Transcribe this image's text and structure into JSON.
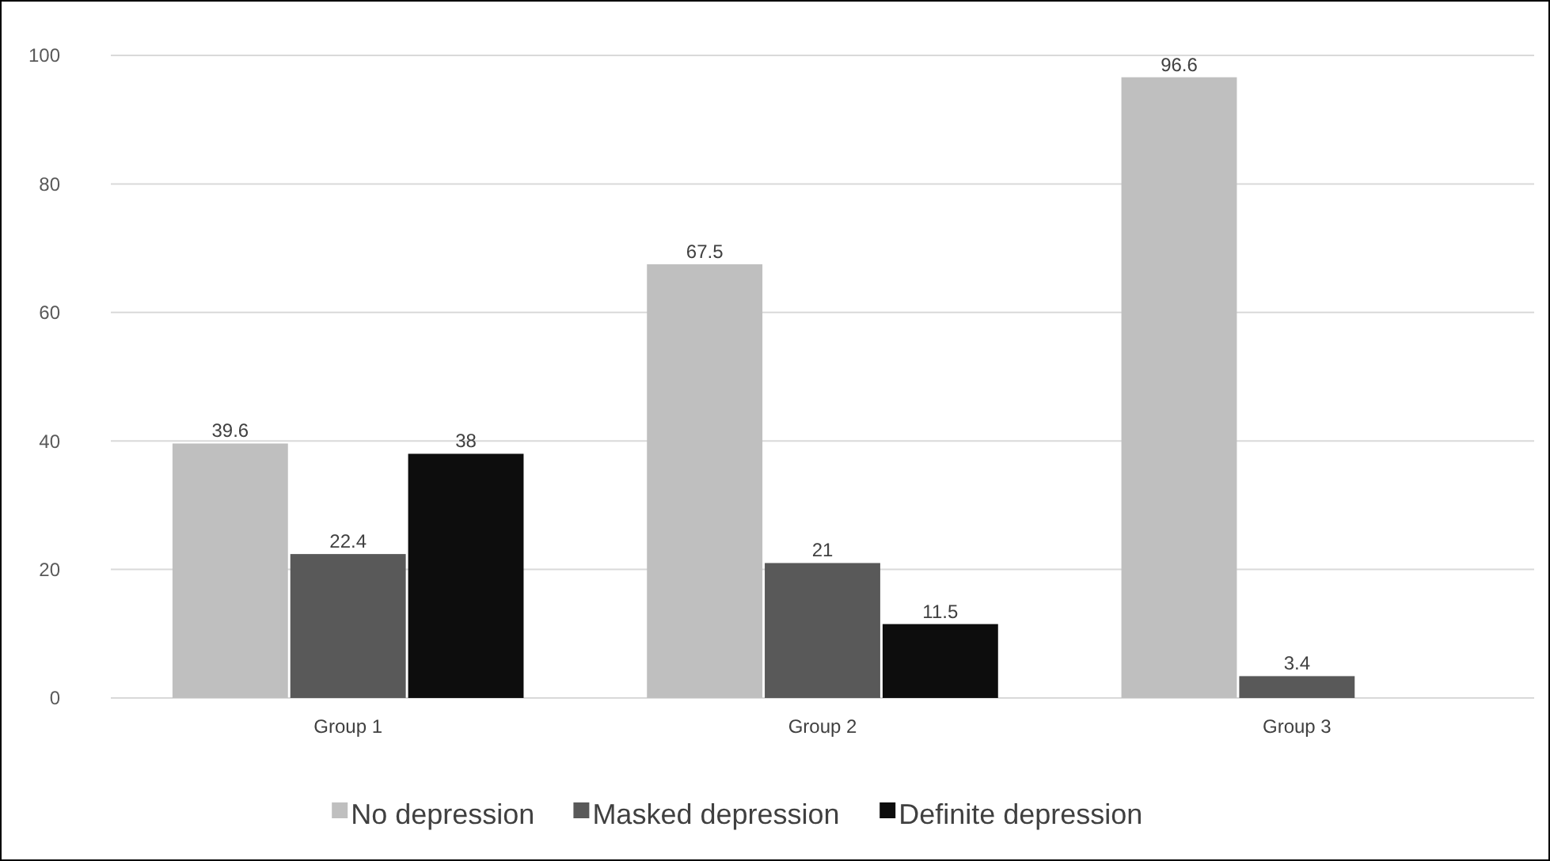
{
  "chart_data": {
    "type": "bar",
    "categories": [
      "Group 1",
      "Group 2",
      "Group 3"
    ],
    "series": [
      {
        "name": "No depression",
        "color": "#bfbfbf",
        "values": [
          39.6,
          67.5,
          96.6
        ]
      },
      {
        "name": "Masked depression",
        "color": "#595959",
        "values": [
          22.4,
          21,
          3.4
        ]
      },
      {
        "name": "Definite depression",
        "color": "#0d0d0d",
        "values": [
          38,
          11.5,
          null
        ]
      }
    ],
    "ylim": [
      0,
      100
    ],
    "yticks": [
      0,
      20,
      40,
      60,
      80,
      100
    ],
    "grid": "y",
    "legend": "bottom",
    "data_labels": true
  }
}
